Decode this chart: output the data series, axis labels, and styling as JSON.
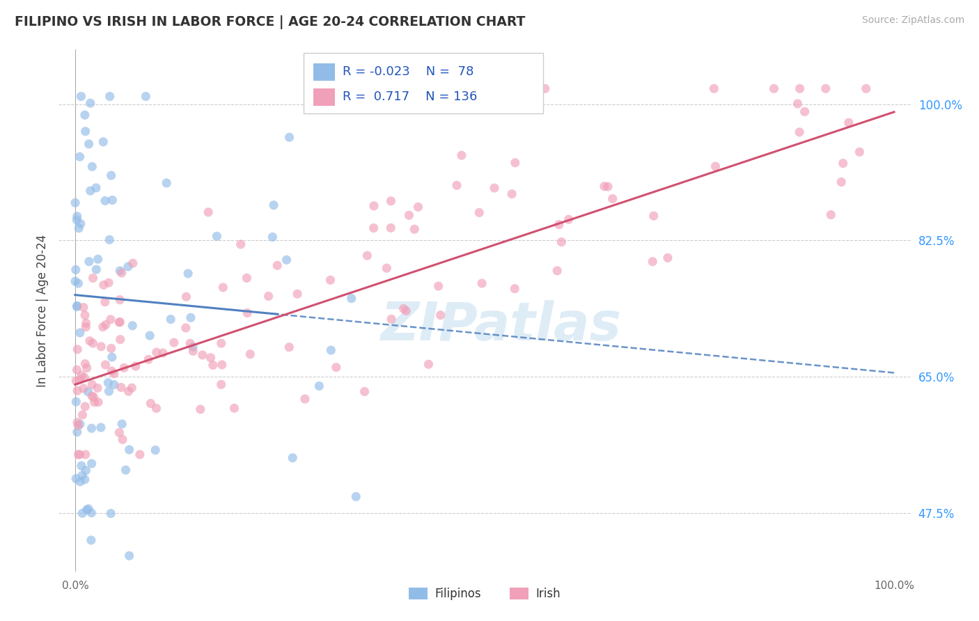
{
  "title": "FILIPINO VS IRISH IN LABOR FORCE | AGE 20-24 CORRELATION CHART",
  "source": "Source: ZipAtlas.com",
  "ylabel": "In Labor Force | Age 20-24",
  "yticks": [
    0.475,
    0.65,
    0.825,
    1.0
  ],
  "ytick_labels": [
    "47.5%",
    "65.0%",
    "82.5%",
    "100.0%"
  ],
  "watermark": "ZIPatlas",
  "legend_r_blue": "-0.023",
  "legend_n_blue": "78",
  "legend_r_pink": "0.717",
  "legend_n_pink": "136",
  "blue_scatter_color": "#92bce8",
  "pink_scatter_color": "#f0a0b8",
  "blue_line_color": "#5080c0",
  "pink_line_color": "#d05070",
  "xlim": [
    -0.02,
    1.02
  ],
  "ylim": [
    0.4,
    1.07
  ]
}
